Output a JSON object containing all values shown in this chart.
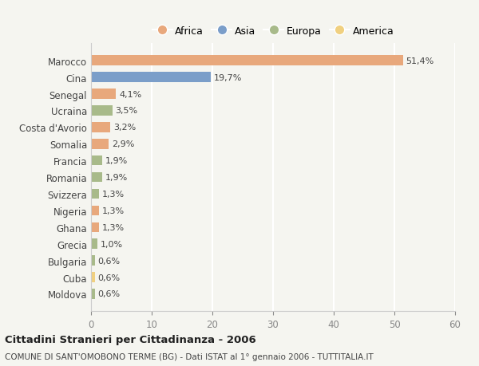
{
  "countries": [
    "Marocco",
    "Cina",
    "Senegal",
    "Ucraina",
    "Costa d'Avorio",
    "Somalia",
    "Francia",
    "Romania",
    "Svizzera",
    "Nigeria",
    "Ghana",
    "Grecia",
    "Bulgaria",
    "Cuba",
    "Moldova"
  ],
  "values": [
    51.4,
    19.7,
    4.1,
    3.5,
    3.2,
    2.9,
    1.9,
    1.9,
    1.3,
    1.3,
    1.3,
    1.0,
    0.6,
    0.6,
    0.6
  ],
  "labels": [
    "51,4%",
    "19,7%",
    "4,1%",
    "3,5%",
    "3,2%",
    "2,9%",
    "1,9%",
    "1,9%",
    "1,3%",
    "1,3%",
    "1,3%",
    "1,0%",
    "0,6%",
    "0,6%",
    "0,6%"
  ],
  "continents": [
    "Africa",
    "Asia",
    "Africa",
    "Europa",
    "Africa",
    "Africa",
    "Europa",
    "Europa",
    "Europa",
    "Africa",
    "Africa",
    "Europa",
    "Europa",
    "America",
    "Europa"
  ],
  "colors": {
    "Africa": "#E8A87C",
    "Asia": "#7B9EC9",
    "Europa": "#A8BA8A",
    "America": "#F0D080"
  },
  "legend_entries": [
    "Africa",
    "Asia",
    "Europa",
    "America"
  ],
  "xlim": [
    0,
    60
  ],
  "xticks": [
    0,
    10,
    20,
    30,
    40,
    50,
    60
  ],
  "title1": "Cittadini Stranieri per Cittadinanza - 2006",
  "title2": "COMUNE DI SANT'OMOBONO TERME (BG) - Dati ISTAT al 1° gennaio 2006 - TUTTITALIA.IT",
  "background_color": "#f5f5f0",
  "grid_color": "#ffffff",
  "bar_height": 0.6
}
